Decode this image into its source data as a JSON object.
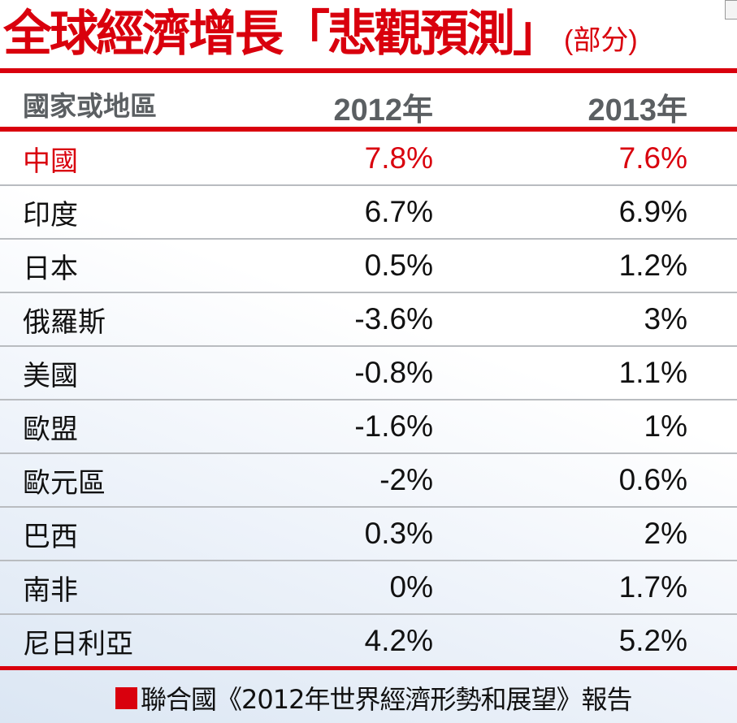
{
  "title": {
    "main": "全球經濟增長「悲觀預測」",
    "sub": "(部分)"
  },
  "colors": {
    "accent": "#d9000d",
    "header_text": "#5b5f62"
  },
  "chart_data": {
    "type": "table",
    "title": "全球經濟增長「悲觀預測」(部分)",
    "columns": [
      "國家或地區",
      "2012年",
      "2013年"
    ],
    "rows": [
      {
        "region": "中國",
        "y2012": "7.8%",
        "y2013": "7.6%",
        "highlight": true
      },
      {
        "region": "印度",
        "y2012": "6.7%",
        "y2013": "6.9%"
      },
      {
        "region": "日本",
        "y2012": "0.5%",
        "y2013": "1.2%"
      },
      {
        "region": "俄羅斯",
        "y2012": "-3.6%",
        "y2013": "3%"
      },
      {
        "region": "美國",
        "y2012": "-0.8%",
        "y2013": "1.1%"
      },
      {
        "region": "歐盟",
        "y2012": "-1.6%",
        "y2013": "1%"
      },
      {
        "region": "歐元區",
        "y2012": "-2%",
        "y2013": "0.6%"
      },
      {
        "region": "巴西",
        "y2012": "0.3%",
        "y2013": "2%"
      },
      {
        "region": "南非",
        "y2012": "0%",
        "y2013": "1.7%"
      },
      {
        "region": "尼日利亞",
        "y2012": "4.2%",
        "y2013": "5.2%"
      }
    ]
  },
  "footer": {
    "source": "聯合國《2012年世界經濟形勢和展望》報告"
  }
}
